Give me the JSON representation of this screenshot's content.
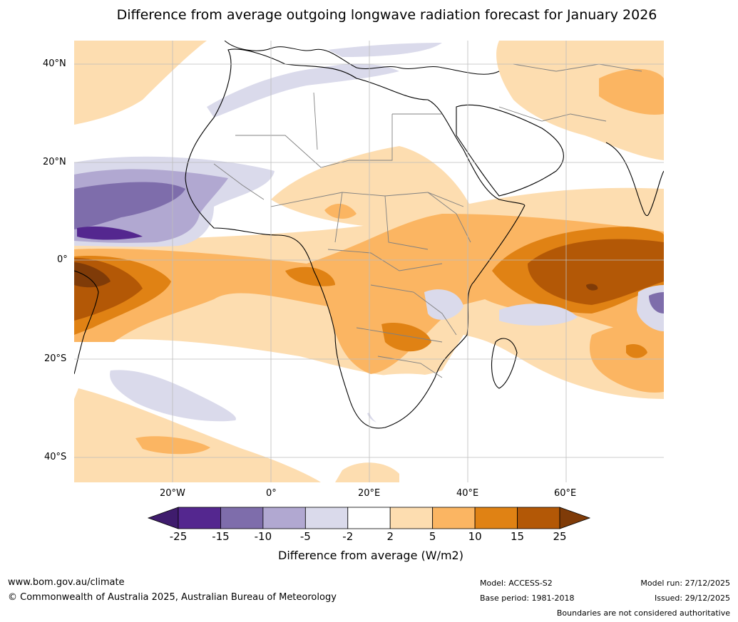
{
  "title": "Difference from average outgoing longwave radiation forecast for January 2026",
  "axes": {
    "lat_labels": [
      "40°N",
      "20°N",
      "0°",
      "20°S",
      "40°S"
    ],
    "lon_labels": [
      "20°W",
      "0°",
      "20°E",
      "40°E",
      "60°E"
    ]
  },
  "colorbar": {
    "title": "Difference from average (W/m2)",
    "ticks": [
      "-25",
      "-15",
      "-10",
      "-5",
      "-2",
      "2",
      "5",
      "10",
      "15",
      "25"
    ],
    "colors": [
      "#3f1c6d",
      "#54278f",
      "#7e6dab",
      "#b1a8d1",
      "#dadaeb",
      "#ffffff",
      "#fdddb0",
      "#fbb562",
      "#e08214",
      "#b35806",
      "#7f3b08"
    ]
  },
  "footer": {
    "website": "www.bom.gov.au/climate",
    "copyright": "© Commonwealth of Australia 2025, Australian Bureau of Meteorology",
    "model": "Model: ACCESS-S2",
    "base_period": "Base period: 1981-2018",
    "model_run": "Model run: 27/12/2025",
    "issued": "Issued: 29/12/2025",
    "disclaimer": "Boundaries are not considered authoritative"
  }
}
